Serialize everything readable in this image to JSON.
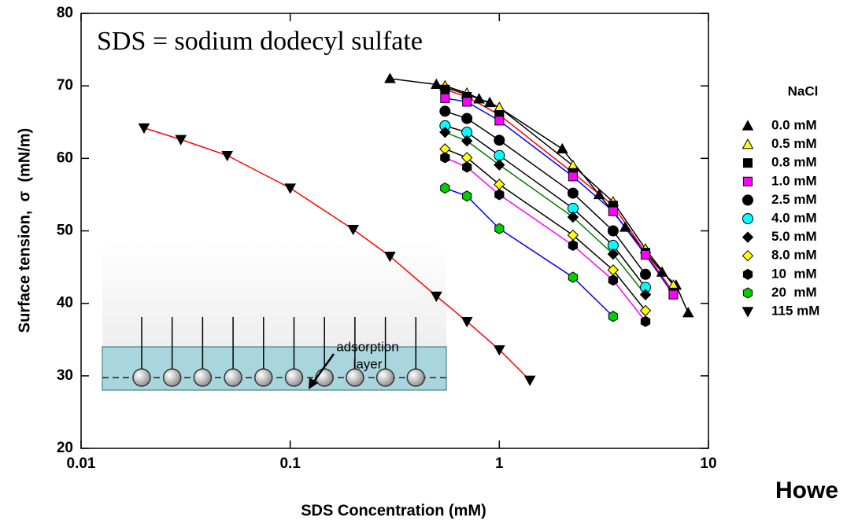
{
  "chart_data": {
    "type": "scatter",
    "annotation": "SDS = sodium dodecyl sulfate",
    "x_label": "SDS Concentration (mM)",
    "y_label": "Surface tension,  σ  (mN/m)",
    "legend_title": "NaCl",
    "inset_label": [
      "adsorption",
      "layer"
    ],
    "xlog": true,
    "xlim": [
      0.01,
      10
    ],
    "xticks": [
      0.01,
      0.1,
      1,
      10
    ],
    "ylim": [
      20,
      80
    ],
    "yticks": [
      20,
      30,
      40,
      50,
      60,
      70,
      80
    ],
    "legend": "right",
    "series": [
      {
        "name": "0.0 mM",
        "marker": "triangle-up",
        "color": "#000000",
        "line_color": "#000000",
        "x": [
          0.3,
          0.5,
          0.7,
          0.8,
          0.9,
          1.0,
          2.0,
          3.0,
          4.0,
          6.0,
          7.0,
          8.0
        ],
        "values": [
          71.0,
          70.2,
          68.8,
          68.2,
          67.7,
          67.0,
          61.3,
          55.0,
          50.5,
          44.3,
          42.5,
          38.7
        ]
      },
      {
        "name": "0.5 mM",
        "marker": "triangle-up",
        "color": "#ffff00",
        "line_color": "#000000",
        "x": [
          0.55,
          0.7,
          1.0,
          2.25,
          3.5,
          5.0,
          6.8
        ],
        "values": [
          70.0,
          69.0,
          67.0,
          59.0,
          54.0,
          47.5,
          42.5
        ]
      },
      {
        "name": "0.8 mM",
        "marker": "square",
        "color": "#000000",
        "line_color": "#ff0000",
        "x": [
          0.55,
          0.7,
          1.0,
          2.25,
          3.5,
          5.0,
          6.8
        ],
        "values": [
          69.5,
          68.5,
          66.0,
          58.0,
          53.5,
          47.0,
          41.5
        ]
      },
      {
        "name": "1.0 mM",
        "marker": "square",
        "color": "#ff00ff",
        "line_color": "#0000ff",
        "x": [
          0.55,
          0.7,
          1.0,
          2.25,
          3.5,
          5.0,
          6.8
        ],
        "values": [
          68.3,
          67.8,
          65.2,
          57.5,
          52.7,
          46.7,
          41.2
        ]
      },
      {
        "name": "2.5 mM",
        "marker": "circle",
        "color": "#000000",
        "line_color": "#000000",
        "x": [
          0.55,
          0.7,
          1.0,
          2.25,
          3.5,
          5.0
        ],
        "values": [
          66.5,
          65.5,
          62.5,
          55.2,
          50.0,
          44.0
        ]
      },
      {
        "name": "4.0 mM",
        "marker": "circle",
        "color": "#00ffff",
        "line_color": "#000000",
        "x": [
          0.55,
          0.7,
          1.0,
          2.25,
          3.5,
          5.0
        ],
        "values": [
          64.5,
          63.6,
          60.4,
          53.1,
          48.0,
          42.2
        ]
      },
      {
        "name": "5.0 mM",
        "marker": "diamond",
        "color": "#000000",
        "line_color": "#008000",
        "x": [
          0.55,
          0.7,
          1.0,
          2.25,
          3.5,
          5.0
        ],
        "values": [
          63.6,
          62.4,
          59.1,
          51.9,
          46.8,
          41.2
        ]
      },
      {
        "name": "8.0 mM",
        "marker": "diamond",
        "color": "#ffff00",
        "line_color": "#000000",
        "x": [
          0.55,
          0.7,
          1.0,
          2.25,
          3.5,
          5.0
        ],
        "values": [
          61.3,
          60.1,
          56.4,
          49.4,
          44.6,
          39.0
        ]
      },
      {
        "name": "10  mM",
        "marker": "hexagon",
        "color": "#000000",
        "line_color": "#ff00ff",
        "x": [
          0.55,
          0.7,
          1.0,
          2.25,
          3.5,
          5.0
        ],
        "values": [
          60.1,
          58.8,
          55.0,
          48.0,
          43.2,
          37.5
        ]
      },
      {
        "name": "20  mM",
        "marker": "hexagon",
        "color": "#00cc00",
        "line_color": "#0000ff",
        "x": [
          0.55,
          0.7,
          1.0,
          2.25,
          3.5
        ],
        "values": [
          55.9,
          54.8,
          50.3,
          43.6,
          38.2
        ]
      },
      {
        "name": "115 mM",
        "marker": "triangle-down",
        "color": "#000000",
        "line_color": "#ff0000",
        "x": [
          0.02,
          0.03,
          0.05,
          0.1,
          0.2,
          0.3,
          0.5,
          0.7,
          1.0,
          1.4
        ],
        "values": [
          64.2,
          62.6,
          60.4,
          55.9,
          50.2,
          46.5,
          41.0,
          37.5,
          33.6,
          29.4
        ]
      }
    ]
  },
  "fragment": "Howe"
}
